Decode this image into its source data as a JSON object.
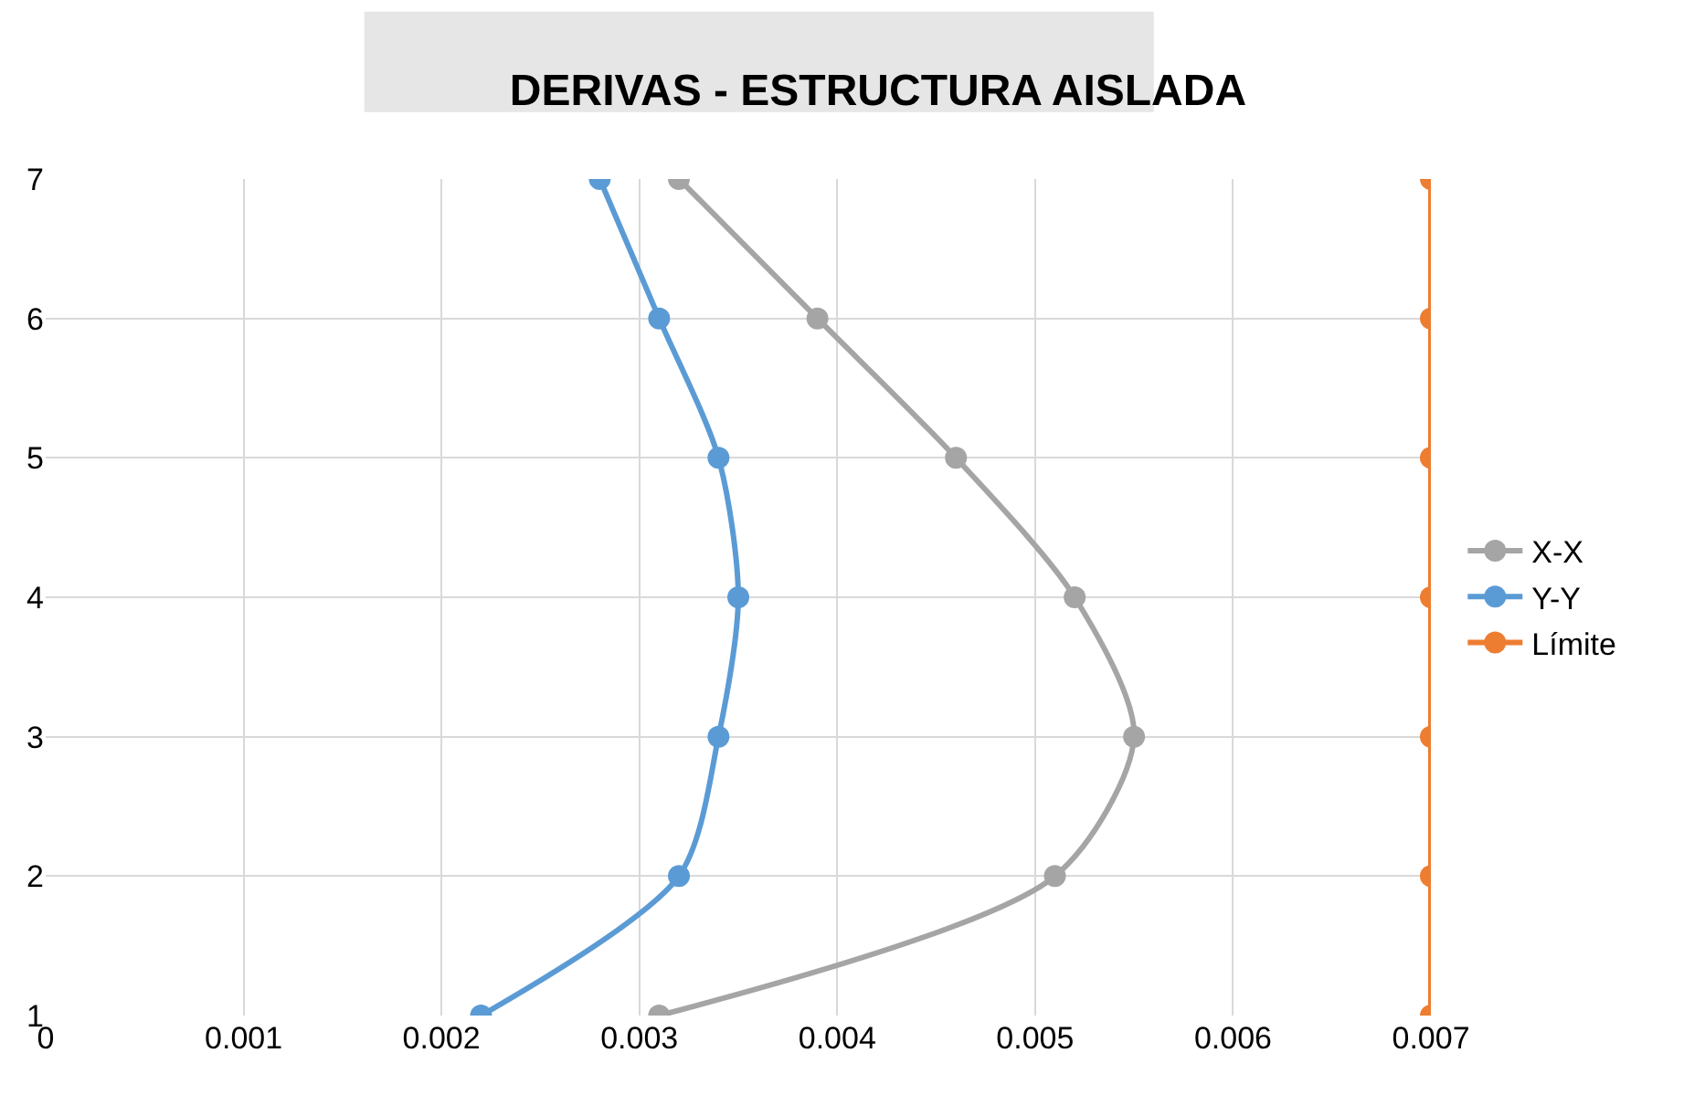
{
  "chart_data": {
    "type": "line",
    "title": "DERIVAS - ESTRUCTURA AISLADA",
    "series": [
      {
        "name": "X-X",
        "color": "#a5a5a5",
        "x": [
          0.0031,
          0.0051,
          0.0055,
          0.0052,
          0.0046,
          0.0039,
          0.0032
        ],
        "values": [
          1,
          2,
          3,
          4,
          5,
          6,
          7
        ]
      },
      {
        "name": "Y-Y",
        "color": "#5b9bd5",
        "x": [
          0.0022,
          0.0032,
          0.0034,
          0.0035,
          0.0034,
          0.0031,
          0.0028
        ],
        "values": [
          1,
          2,
          3,
          4,
          5,
          6,
          7
        ]
      },
      {
        "name": "Límite",
        "color": "#ed7d31",
        "x": [
          0.007,
          0.007,
          0.007,
          0.007,
          0.007,
          0.007,
          0.007
        ],
        "values": [
          1,
          2,
          3,
          4,
          5,
          6,
          7
        ]
      }
    ],
    "xlim": [
      0,
      0.007
    ],
    "xticks": [
      0,
      0.001,
      0.002,
      0.003,
      0.004,
      0.005,
      0.006,
      0.007
    ],
    "ylim": [
      1,
      7
    ],
    "yticks": [
      1,
      2,
      3,
      4,
      5,
      6,
      7
    ],
    "grid": true,
    "legend": "right",
    "marker": "circle",
    "line_style": "solid"
  }
}
